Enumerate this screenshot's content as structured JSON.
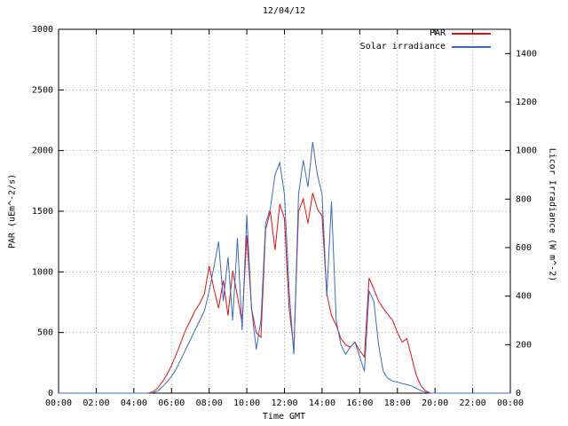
{
  "colors": {
    "background": "#ffffff",
    "grid": "#9e9e9e",
    "axis": "#000000",
    "text": "#000000",
    "par_line": "#df1010",
    "solar_line": "#3a6abf"
  },
  "chart_data": {
    "type": "line",
    "title": "12/04/12",
    "xlabel": "Time GMT",
    "ylabel": "PAR (uEm^-2/s)",
    "y2label": "Licor Irradiance (W m^-2)",
    "grid": true,
    "legend_position": "top-right",
    "x_range_hours": [
      0,
      24
    ],
    "y_left_range": [
      0,
      3000
    ],
    "y_right_range": [
      0,
      1500
    ],
    "x_tick_hours": [
      0,
      2,
      4,
      6,
      8,
      10,
      12,
      14,
      16,
      18,
      20,
      22,
      24
    ],
    "x_tick_labels": [
      "00:00",
      "02:00",
      "04:00",
      "06:00",
      "08:00",
      "10:00",
      "12:00",
      "14:00",
      "16:00",
      "18:00",
      "20:00",
      "22:00",
      "00:00"
    ],
    "y_left_ticks": [
      0,
      500,
      1000,
      1500,
      2000,
      2500,
      3000
    ],
    "y_right_ticks": [
      0,
      200,
      400,
      600,
      800,
      1000,
      1200,
      1400
    ],
    "series": [
      {
        "name": "PAR",
        "color": "#df1010",
        "axis": "left",
        "units": "uEm^-2/s"
      },
      {
        "name": "Solar irradiance",
        "color": "#3a6abf",
        "axis": "right",
        "units": "W m^-2"
      }
    ],
    "points": [
      [
        0,
        0,
        0
      ],
      [
        0.25,
        0,
        0
      ],
      [
        0.5,
        0,
        0
      ],
      [
        0.75,
        0,
        0
      ],
      [
        1,
        0,
        0
      ],
      [
        1.25,
        0,
        0
      ],
      [
        1.5,
        0,
        0
      ],
      [
        1.75,
        0,
        0
      ],
      [
        2,
        0,
        0
      ],
      [
        2.25,
        0,
        0
      ],
      [
        2.5,
        0,
        0
      ],
      [
        2.75,
        0,
        0
      ],
      [
        3,
        0,
        0
      ],
      [
        3.25,
        0,
        0
      ],
      [
        3.5,
        0,
        0
      ],
      [
        3.75,
        0,
        0
      ],
      [
        4,
        0,
        0
      ],
      [
        4.25,
        0,
        0
      ],
      [
        4.5,
        0,
        0
      ],
      [
        4.75,
        0,
        0
      ],
      [
        5,
        10,
        2
      ],
      [
        5.25,
        40,
        8
      ],
      [
        5.5,
        90,
        25
      ],
      [
        5.75,
        150,
        45
      ],
      [
        6,
        230,
        70
      ],
      [
        6.25,
        320,
        100
      ],
      [
        6.5,
        420,
        140
      ],
      [
        6.75,
        520,
        180
      ],
      [
        7,
        600,
        220
      ],
      [
        7.25,
        680,
        260
      ],
      [
        7.5,
        740,
        300
      ],
      [
        7.75,
        820,
        340
      ],
      [
        8,
        1050,
        420
      ],
      [
        8.25,
        860,
        520
      ],
      [
        8.5,
        700,
        625
      ],
      [
        8.75,
        930,
        380
      ],
      [
        9,
        640,
        560
      ],
      [
        9.25,
        1010,
        300
      ],
      [
        9.5,
        800,
        640
      ],
      [
        9.75,
        580,
        260
      ],
      [
        10,
        1300,
        735
      ],
      [
        10.25,
        700,
        350
      ],
      [
        10.5,
        500,
        180
      ],
      [
        10.75,
        460,
        300
      ],
      [
        11,
        1350,
        700
      ],
      [
        11.25,
        1500,
        760
      ],
      [
        11.5,
        1180,
        900
      ],
      [
        11.75,
        1560,
        950
      ],
      [
        12,
        1440,
        820
      ],
      [
        12.25,
        700,
        420
      ],
      [
        12.5,
        360,
        160
      ],
      [
        12.75,
        1500,
        820
      ],
      [
        13,
        1600,
        960
      ],
      [
        13.25,
        1400,
        850
      ],
      [
        13.5,
        1650,
        1035
      ],
      [
        13.75,
        1520,
        900
      ],
      [
        14,
        1460,
        820
      ],
      [
        14.25,
        820,
        400
      ],
      [
        14.5,
        640,
        790
      ],
      [
        14.75,
        560,
        300
      ],
      [
        15,
        450,
        200
      ],
      [
        15.25,
        400,
        160
      ],
      [
        15.5,
        380,
        190
      ],
      [
        15.75,
        420,
        210
      ],
      [
        16,
        350,
        150
      ],
      [
        16.25,
        300,
        90
      ],
      [
        16.5,
        950,
        420
      ],
      [
        16.75,
        860,
        380
      ],
      [
        17,
        760,
        200
      ],
      [
        17.25,
        700,
        90
      ],
      [
        17.5,
        650,
        60
      ],
      [
        17.75,
        600,
        50
      ],
      [
        18,
        500,
        45
      ],
      [
        18.25,
        420,
        40
      ],
      [
        18.5,
        450,
        35
      ],
      [
        18.75,
        300,
        30
      ],
      [
        19,
        150,
        20
      ],
      [
        19.25,
        60,
        10
      ],
      [
        19.5,
        20,
        4
      ],
      [
        19.75,
        0,
        0
      ],
      [
        20,
        0,
        0
      ],
      [
        20.25,
        0,
        0
      ],
      [
        20.5,
        0,
        0
      ],
      [
        20.75,
        0,
        0
      ],
      [
        21,
        0,
        0
      ],
      [
        21.25,
        0,
        0
      ],
      [
        21.5,
        0,
        0
      ],
      [
        21.75,
        0,
        0
      ],
      [
        22,
        0,
        0
      ],
      [
        22.25,
        0,
        0
      ],
      [
        22.5,
        0,
        0
      ],
      [
        22.75,
        0,
        0
      ],
      [
        23,
        0,
        0
      ],
      [
        23.25,
        0,
        0
      ],
      [
        23.5,
        0,
        0
      ],
      [
        23.75,
        0,
        0
      ],
      [
        24,
        0,
        0
      ]
    ]
  }
}
